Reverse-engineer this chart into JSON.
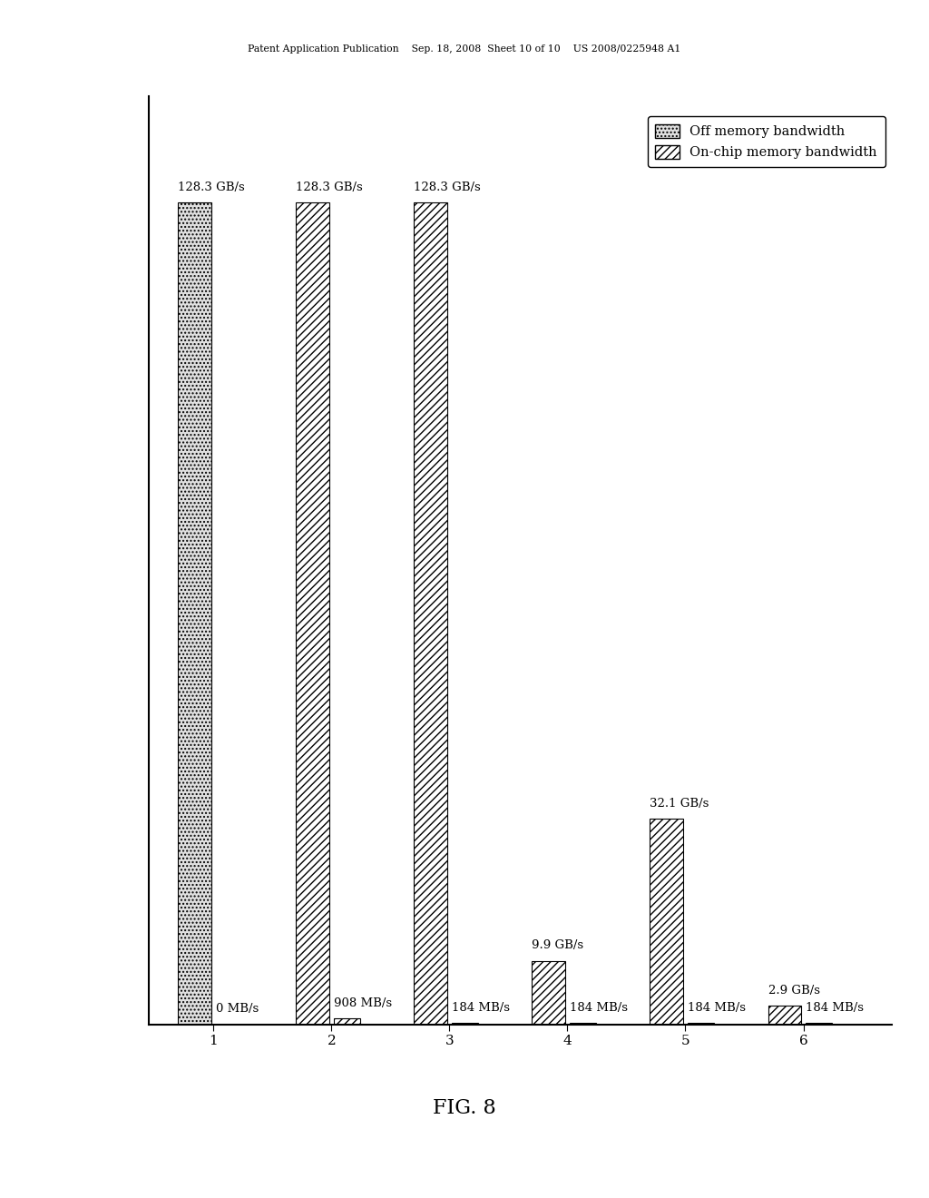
{
  "groups": [
    1,
    2,
    3,
    4,
    5,
    6
  ],
  "tall_bar_values_GBs": [
    128.3,
    128.3,
    128.3,
    9.9,
    32.1,
    2.9
  ],
  "small_bar_values_GBs": [
    0.0,
    0.908,
    0.184,
    0.184,
    0.184,
    0.184
  ],
  "tall_bar_labels": [
    "128.3 GB/s",
    "128.3 GB/s",
    "128.3 GB/s",
    "9.9 GB/s",
    "32.1 GB/s",
    "2.9 GB/s"
  ],
  "small_bar_labels": [
    "0 MB/s",
    "908 MB/s",
    "184 MB/s",
    "184 MB/s",
    "184 MB/s",
    "184 MB/s"
  ],
  "tall_hatch": [
    "dotted",
    "hatch",
    "hatch",
    "hatch",
    "hatch",
    "hatch"
  ],
  "small_hatch": [
    "dotted",
    "hatch",
    "hatch",
    "hatch",
    "hatch",
    "hatch"
  ],
  "legend_off": "Off memory bandwidth",
  "legend_onchip": "On-chip memory bandwidth",
  "fig_caption": "FIG. 8",
  "bar_width": 0.28,
  "small_bar_width": 0.22,
  "ylim_max": 145,
  "background_color": "#ffffff",
  "edgecolor": "#000000",
  "header_text": "Patent Application Publication    Sep. 18, 2008  Sheet 10 of 10    US 2008/0225948 A1"
}
